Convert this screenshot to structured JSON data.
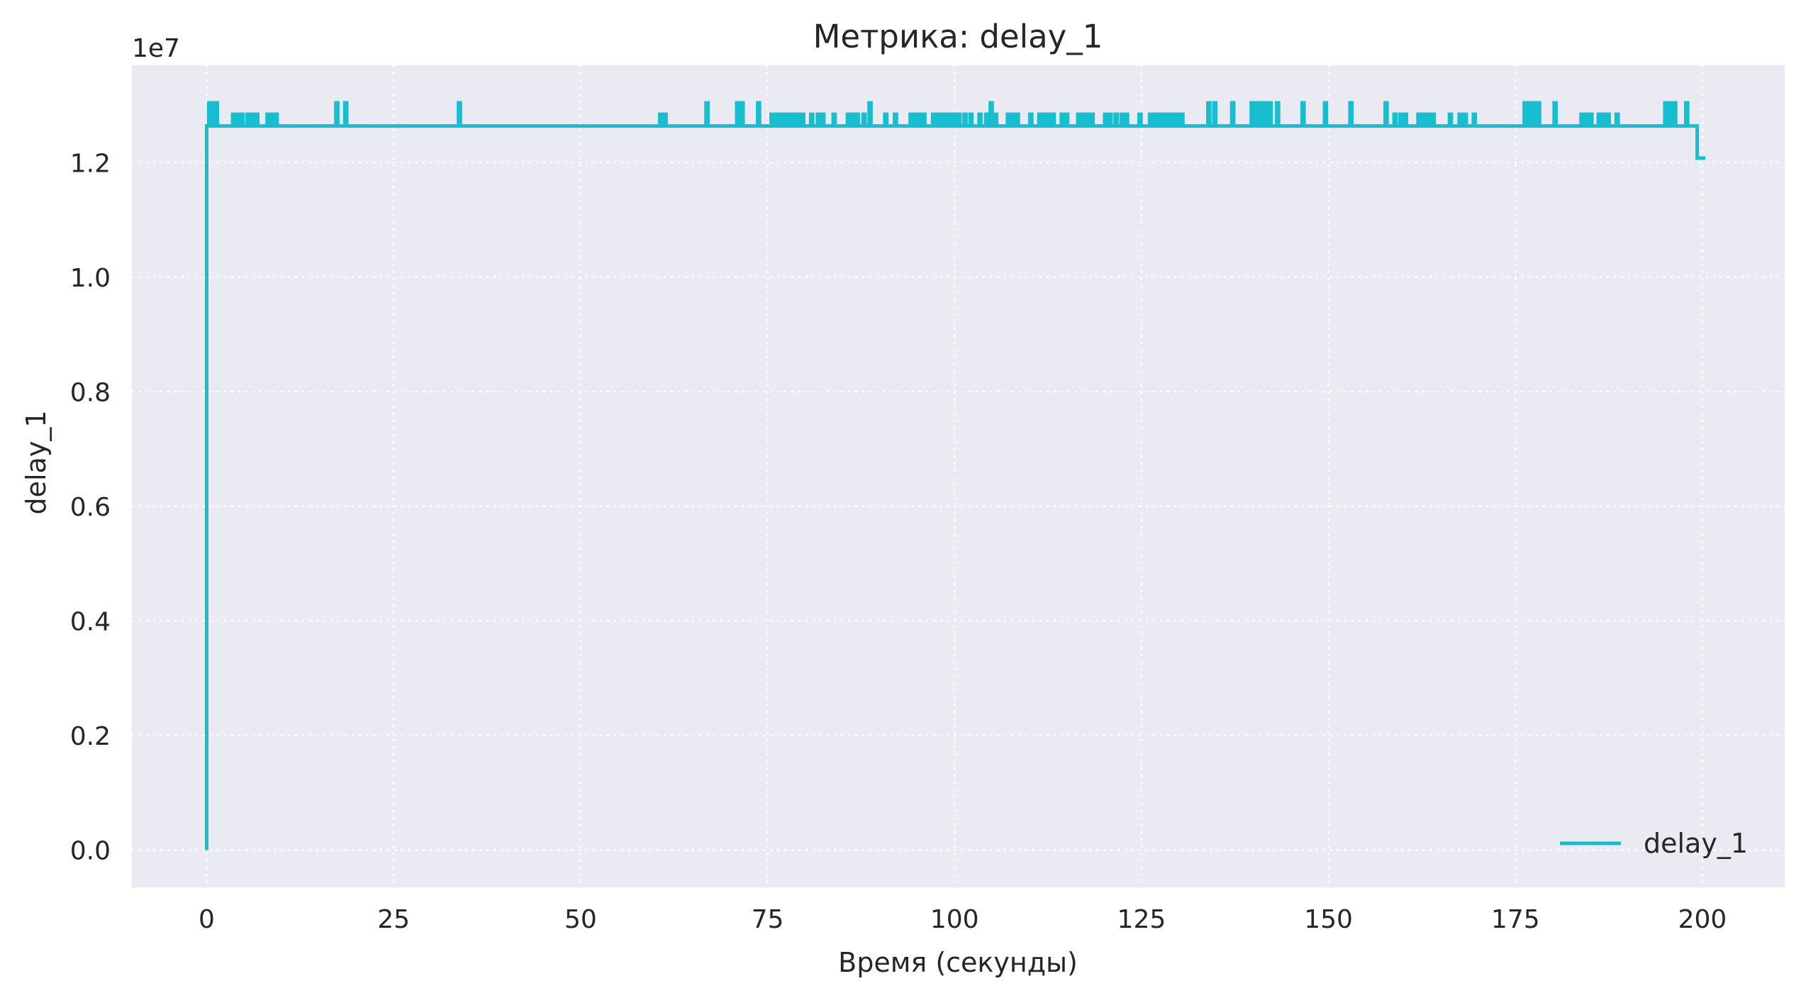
{
  "chart_data": {
    "type": "line",
    "title": "Метрика: delay_1",
    "xlabel": "Время (секунды)",
    "ylabel": "delay_1",
    "y_offset_label": "1e7",
    "xlim": [
      -10,
      211
    ],
    "ylim": [
      -0.065,
      1.37
    ],
    "x_ticks": [
      0,
      25,
      50,
      75,
      100,
      125,
      150,
      175,
      200
    ],
    "x_tick_labels": [
      "0",
      "25",
      "50",
      "75",
      "100",
      "125",
      "150",
      "175",
      "200"
    ],
    "y_ticks": [
      0.0,
      0.2,
      0.4,
      0.6,
      0.8,
      1.0,
      1.2
    ],
    "y_tick_labels": [
      "0.0",
      "0.2",
      "0.4",
      "0.6",
      "0.8",
      "1.0",
      "1.2"
    ],
    "grid": true,
    "legend": "lower right",
    "series": [
      {
        "name": "delay_1",
        "color": "#17becf",
        "baseline": 1.264,
        "end_level": 1.208,
        "end_start": 199.3,
        "x_start": 0,
        "x_end": 200.4,
        "spikes": [
          [
            0.4,
            1.305
          ],
          [
            0.8,
            1.305
          ],
          [
            1.3,
            1.305
          ],
          [
            3.6,
            1.285
          ],
          [
            4.2,
            1.285
          ],
          [
            4.7,
            1.285
          ],
          [
            5.5,
            1.285
          ],
          [
            6.1,
            1.285
          ],
          [
            6.7,
            1.285
          ],
          [
            8.2,
            1.285
          ],
          [
            8.7,
            1.285
          ],
          [
            9.3,
            1.285
          ],
          [
            17.4,
            1.305
          ],
          [
            18.6,
            1.305
          ],
          [
            33.8,
            1.305
          ],
          [
            60.7,
            1.285
          ],
          [
            61.3,
            1.285
          ],
          [
            66.9,
            1.305
          ],
          [
            71.0,
            1.305
          ],
          [
            71.6,
            1.305
          ],
          [
            73.8,
            1.305
          ],
          [
            75.6,
            1.285
          ],
          [
            76.3,
            1.285
          ],
          [
            76.9,
            1.285
          ],
          [
            77.4,
            1.285
          ],
          [
            78.0,
            1.285
          ],
          [
            78.6,
            1.285
          ],
          [
            79.1,
            1.285
          ],
          [
            79.7,
            1.285
          ],
          [
            80.9,
            1.285
          ],
          [
            81.8,
            1.285
          ],
          [
            82.4,
            1.285
          ],
          [
            83.9,
            1.285
          ],
          [
            85.8,
            1.285
          ],
          [
            86.4,
            1.285
          ],
          [
            87.0,
            1.285
          ],
          [
            87.9,
            1.285
          ],
          [
            88.7,
            1.305
          ],
          [
            90.8,
            1.285
          ],
          [
            92.1,
            1.285
          ],
          [
            94.2,
            1.285
          ],
          [
            94.8,
            1.285
          ],
          [
            95.3,
            1.285
          ],
          [
            95.9,
            1.285
          ],
          [
            97.2,
            1.285
          ],
          [
            97.8,
            1.285
          ],
          [
            98.3,
            1.285
          ],
          [
            98.9,
            1.285
          ],
          [
            99.5,
            1.285
          ],
          [
            100.1,
            1.285
          ],
          [
            100.6,
            1.285
          ],
          [
            101.4,
            1.285
          ],
          [
            102.2,
            1.285
          ],
          [
            103.4,
            1.285
          ],
          [
            104.3,
            1.285
          ],
          [
            104.9,
            1.305
          ],
          [
            105.5,
            1.285
          ],
          [
            107.2,
            1.285
          ],
          [
            107.8,
            1.285
          ],
          [
            108.4,
            1.285
          ],
          [
            110.2,
            1.285
          ],
          [
            111.4,
            1.285
          ],
          [
            112.0,
            1.285
          ],
          [
            112.6,
            1.285
          ],
          [
            113.2,
            1.285
          ],
          [
            114.4,
            1.285
          ],
          [
            115.0,
            1.285
          ],
          [
            116.6,
            1.285
          ],
          [
            117.2,
            1.285
          ],
          [
            117.8,
            1.285
          ],
          [
            118.4,
            1.285
          ],
          [
            120.2,
            1.285
          ],
          [
            120.8,
            1.285
          ],
          [
            121.6,
            1.285
          ],
          [
            122.4,
            1.285
          ],
          [
            123.0,
            1.285
          ],
          [
            124.8,
            1.285
          ],
          [
            126.2,
            1.285
          ],
          [
            126.8,
            1.285
          ],
          [
            127.4,
            1.285
          ],
          [
            128.0,
            1.285
          ],
          [
            128.6,
            1.285
          ],
          [
            129.2,
            1.285
          ],
          [
            129.8,
            1.285
          ],
          [
            130.4,
            1.285
          ],
          [
            134.0,
            1.305
          ],
          [
            134.8,
            1.305
          ],
          [
            137.2,
            1.305
          ],
          [
            139.8,
            1.305
          ],
          [
            140.4,
            1.305
          ],
          [
            141.0,
            1.305
          ],
          [
            141.6,
            1.305
          ],
          [
            142.2,
            1.305
          ],
          [
            143.2,
            1.305
          ],
          [
            146.6,
            1.305
          ],
          [
            149.6,
            1.305
          ],
          [
            153.0,
            1.305
          ],
          [
            157.7,
            1.305
          ],
          [
            158.9,
            1.285
          ],
          [
            159.7,
            1.285
          ],
          [
            160.3,
            1.285
          ],
          [
            162.1,
            1.285
          ],
          [
            162.7,
            1.285
          ],
          [
            163.3,
            1.285
          ],
          [
            164.0,
            1.285
          ],
          [
            166.3,
            1.285
          ],
          [
            167.6,
            1.285
          ],
          [
            168.3,
            1.285
          ],
          [
            169.5,
            1.285
          ],
          [
            176.3,
            1.305
          ],
          [
            176.9,
            1.305
          ],
          [
            177.5,
            1.305
          ],
          [
            178.1,
            1.305
          ],
          [
            180.3,
            1.305
          ],
          [
            183.9,
            1.285
          ],
          [
            184.5,
            1.285
          ],
          [
            185.1,
            1.285
          ],
          [
            186.2,
            1.285
          ],
          [
            186.8,
            1.285
          ],
          [
            187.4,
            1.285
          ],
          [
            188.6,
            1.285
          ],
          [
            195.1,
            1.305
          ],
          [
            195.7,
            1.305
          ],
          [
            196.3,
            1.305
          ],
          [
            197.9,
            1.305
          ]
        ]
      }
    ]
  }
}
